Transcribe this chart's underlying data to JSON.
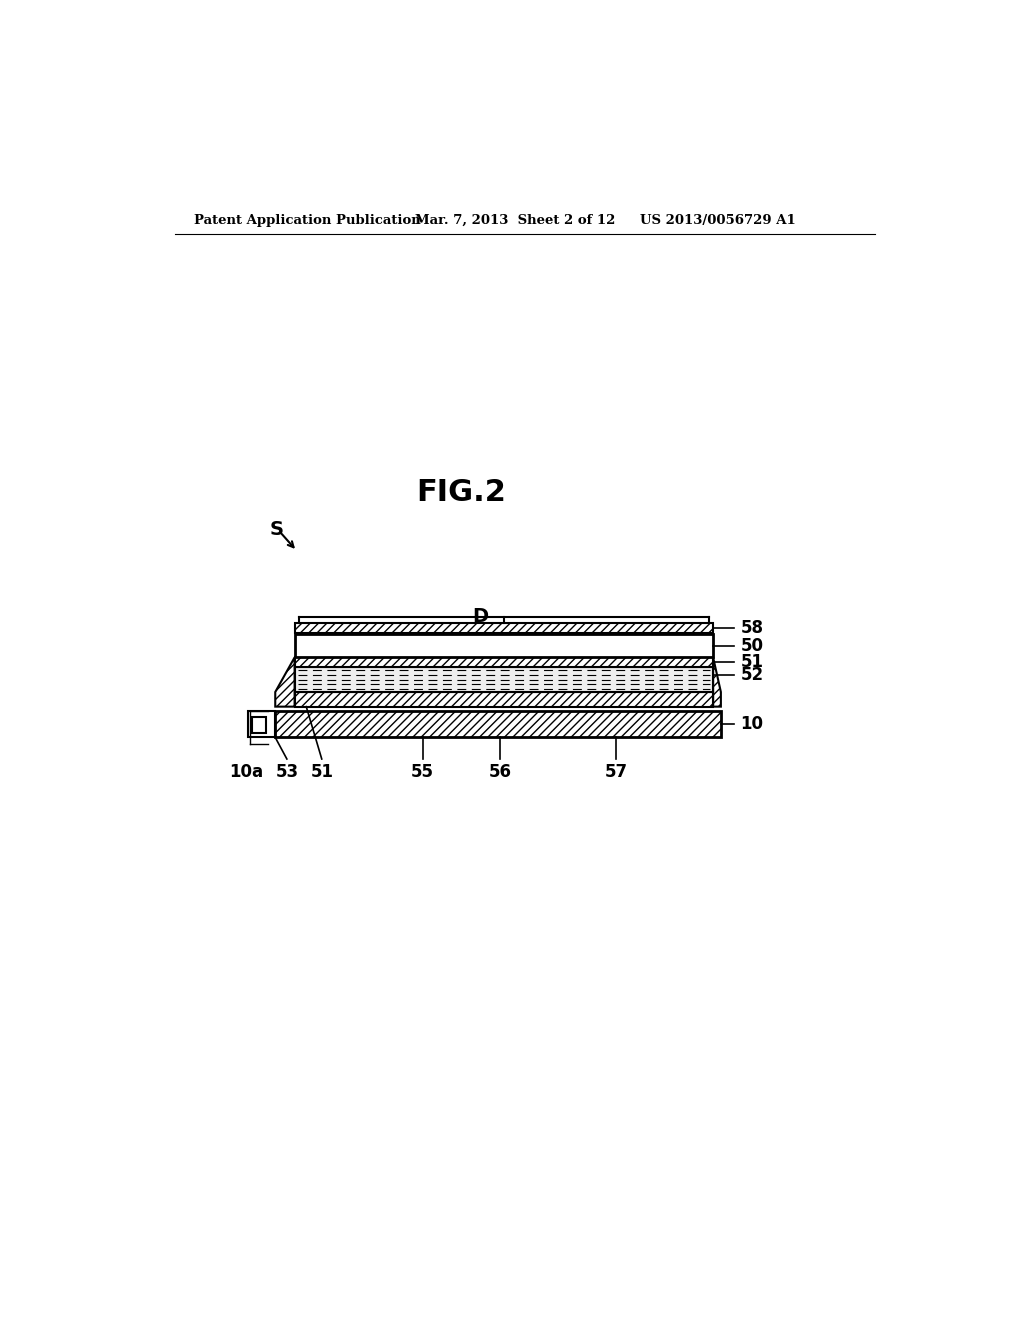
{
  "bg_color": "#ffffff",
  "header_left": "Patent Application Publication",
  "header_mid": "Mar. 7, 2013  Sheet 2 of 12",
  "header_right": "US 2013/0056729 A1",
  "fig_title": "FIG.2",
  "label_S": "S",
  "label_D": "D",
  "label_58": "58",
  "label_50": "50",
  "label_51": "51",
  "label_52": "52",
  "label_10": "10",
  "label_10a": "10a",
  "label_53": "53",
  "label_51b": "51",
  "label_55": "55",
  "label_56": "56",
  "label_57": "57",
  "line_color": "#000000"
}
